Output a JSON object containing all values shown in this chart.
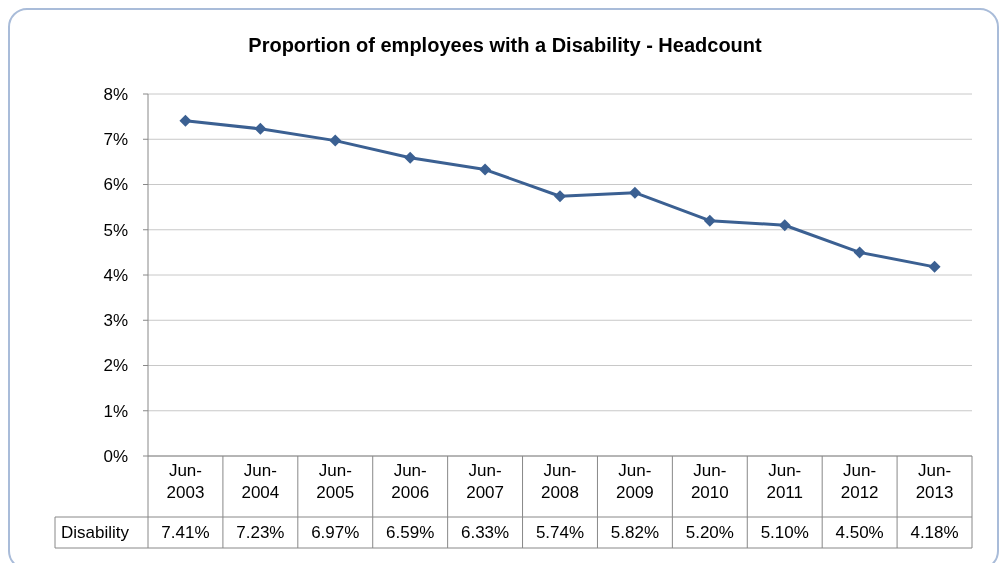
{
  "chart_data": {
    "type": "line",
    "title": "Proportion of employees with a Disability - Headcount",
    "categories": [
      "Jun-2003",
      "Jun-2004",
      "Jun-2005",
      "Jun-2006",
      "Jun-2007",
      "Jun-2008",
      "Jun-2009",
      "Jun-2010",
      "Jun-2011",
      "Jun-2012",
      "Jun-2013"
    ],
    "series": [
      {
        "name": "Disability",
        "color": "#3b6092",
        "values": [
          7.41,
          7.23,
          6.97,
          6.59,
          6.33,
          5.74,
          5.82,
          5.2,
          5.1,
          4.5,
          4.18
        ],
        "value_labels": [
          "7.41%",
          "7.23%",
          "6.97%",
          "6.59%",
          "6.33%",
          "5.74%",
          "5.82%",
          "5.20%",
          "5.10%",
          "4.50%",
          "4.18%"
        ]
      }
    ],
    "ylim": [
      0,
      8
    ],
    "yticks": [
      {
        "value": 0,
        "label": "0%"
      },
      {
        "value": 1,
        "label": "1%"
      },
      {
        "value": 2,
        "label": "2%"
      },
      {
        "value": 3,
        "label": "3%"
      },
      {
        "value": 4,
        "label": "4%"
      },
      {
        "value": 5,
        "label": "5%"
      },
      {
        "value": 6,
        "label": "6%"
      },
      {
        "value": 7,
        "label": "7%"
      },
      {
        "value": 8,
        "label": "8%"
      }
    ],
    "grid": "y",
    "marker": "diamond",
    "line_style": "solid"
  }
}
